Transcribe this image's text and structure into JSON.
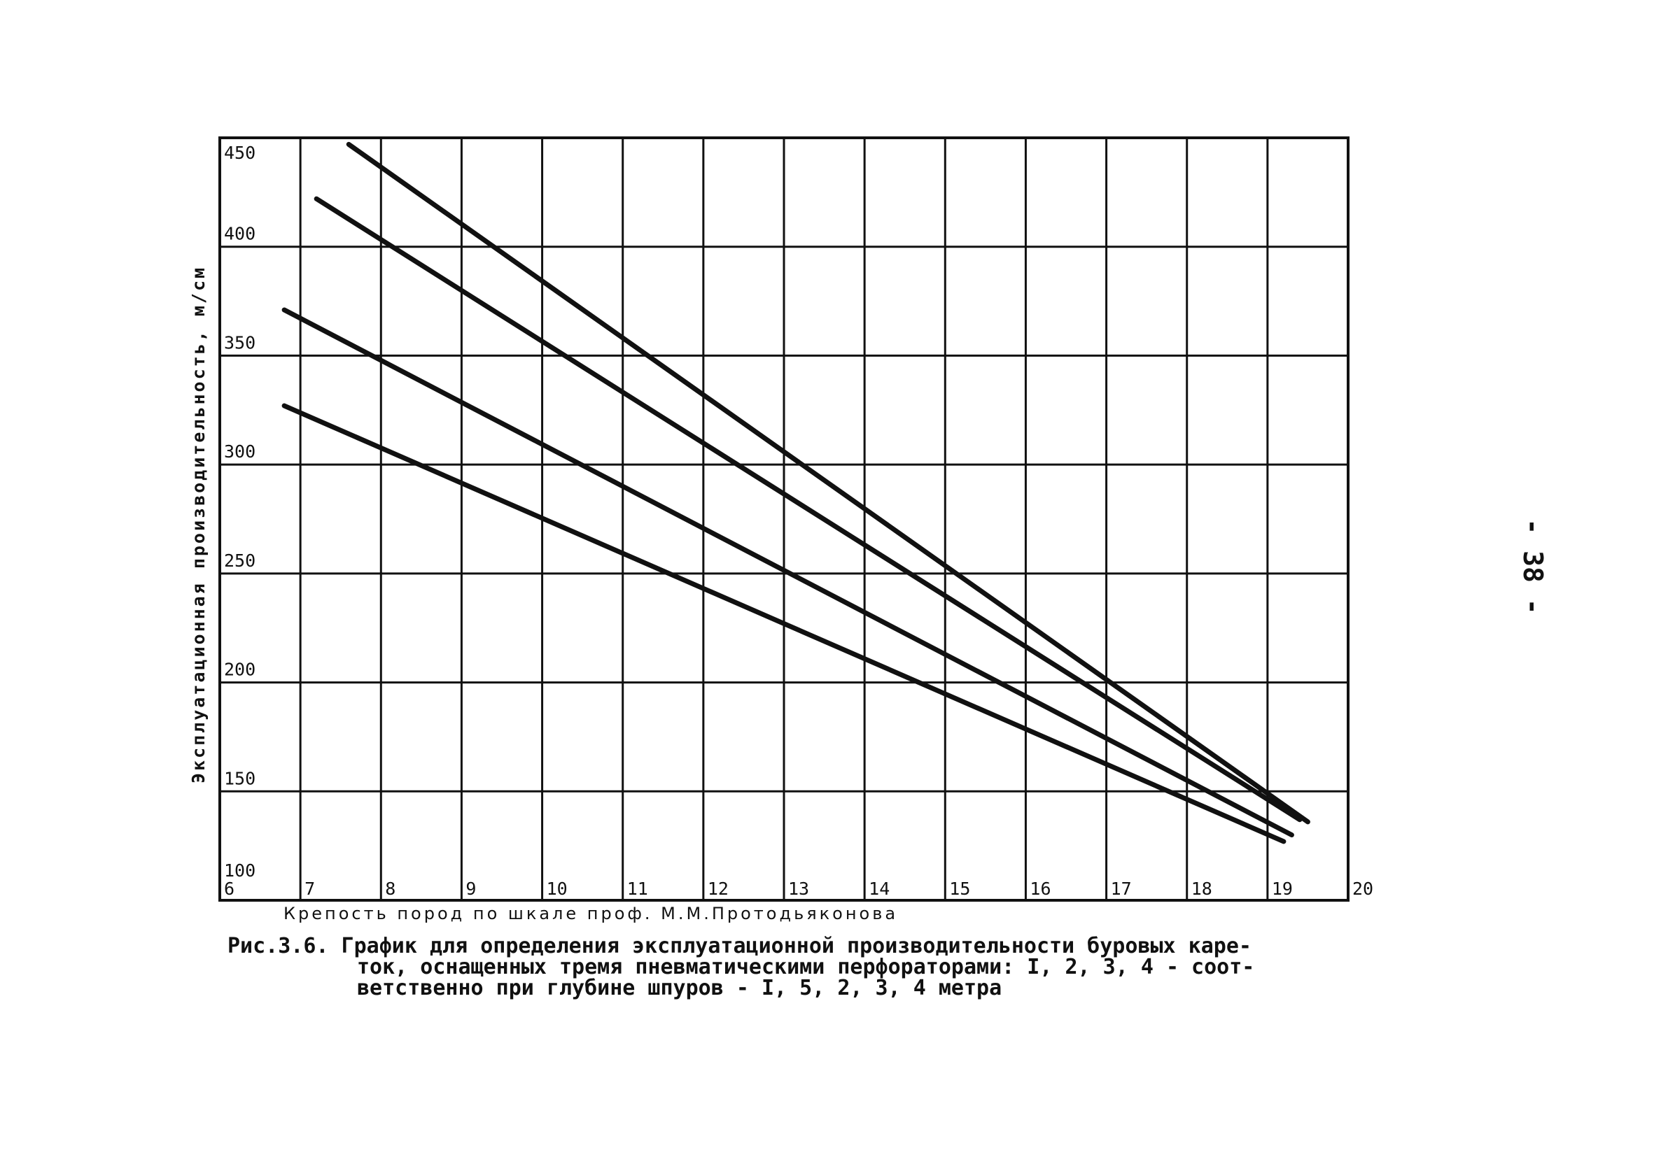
{
  "chart_data": {
    "type": "line",
    "title": "",
    "xlabel": "Крепость пород по шкале проф. М.М.Протодьяконова",
    "ylabel": "Эксплуатационная производительность, м/см",
    "xlim": [
      6,
      20
    ],
    "ylim": [
      100,
      450
    ],
    "x_ticks": [
      "6",
      "7",
      "8",
      "9",
      "10",
      "11",
      "12",
      "13",
      "14",
      "15",
      "16",
      "17",
      "18",
      "19",
      "20"
    ],
    "y_ticks": [
      "100",
      "150",
      "200",
      "250",
      "300",
      "350",
      "400",
      "450"
    ],
    "grid": true,
    "series": [
      {
        "values": [
          [
            7.6,
            447
          ],
          [
            19.5,
            136
          ]
        ]
      },
      {
        "values": [
          [
            7.2,
            422
          ],
          [
            19.4,
            137
          ]
        ]
      },
      {
        "values": [
          [
            6.8,
            371
          ],
          [
            19.3,
            130
          ]
        ]
      },
      {
        "values": [
          [
            6.8,
            327
          ],
          [
            19.2,
            127
          ]
        ]
      }
    ]
  },
  "caption": {
    "line1": "Рис.3.6. График для определения эксплуатационной производительности буровых каре-",
    "line2": "ток, оснащенных тремя пневматическими перфораторами: I, 2, 3, 4 - соот-",
    "line3": "ветственно при глубине шпуров - I, 5, 2, 3, 4 метра"
  },
  "page_number": "- 38 -"
}
